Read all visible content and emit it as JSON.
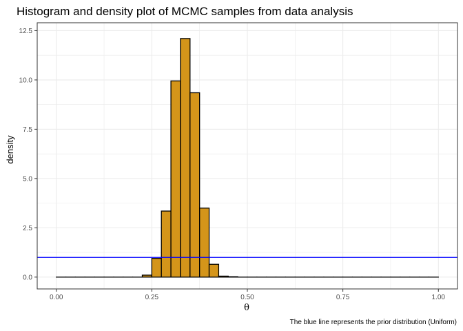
{
  "chart_data": {
    "type": "bar",
    "title": "Histogram and density plot of MCMC samples from data analysis",
    "xlabel": "θ",
    "ylabel": "density",
    "caption": "The blue line represents the prior distribution (Uniform)",
    "xlim": [
      -0.05,
      1.05
    ],
    "ylim": [
      -0.6,
      12.9
    ],
    "x_ticks": [
      0.0,
      0.25,
      0.5,
      0.75,
      1.0
    ],
    "x_tick_labels": [
      "0.00",
      "0.25",
      "0.50",
      "0.75",
      "1.00"
    ],
    "y_ticks": [
      0.0,
      2.5,
      5.0,
      7.5,
      10.0,
      12.5
    ],
    "y_tick_labels": [
      "0.0",
      "2.5",
      "5.0",
      "7.5",
      "10.0",
      "12.5"
    ],
    "grid": true,
    "bin_width": 0.025,
    "bins": [
      {
        "x": 0.0,
        "density": 0.0
      },
      {
        "x": 0.025,
        "density": 0.0
      },
      {
        "x": 0.05,
        "density": 0.0
      },
      {
        "x": 0.075,
        "density": 0.0
      },
      {
        "x": 0.1,
        "density": 0.0
      },
      {
        "x": 0.125,
        "density": 0.0
      },
      {
        "x": 0.15,
        "density": 0.0
      },
      {
        "x": 0.175,
        "density": 0.0
      },
      {
        "x": 0.2,
        "density": 0.0
      },
      {
        "x": 0.225,
        "density": 0.1
      },
      {
        "x": 0.25,
        "density": 0.95
      },
      {
        "x": 0.275,
        "density": 3.35
      },
      {
        "x": 0.3,
        "density": 9.95
      },
      {
        "x": 0.325,
        "density": 12.1
      },
      {
        "x": 0.35,
        "density": 9.35
      },
      {
        "x": 0.375,
        "density": 3.5
      },
      {
        "x": 0.4,
        "density": 0.65
      },
      {
        "x": 0.425,
        "density": 0.05
      },
      {
        "x": 0.45,
        "density": 0.02
      },
      {
        "x": 0.475,
        "density": 0.0
      },
      {
        "x": 0.5,
        "density": 0.0
      },
      {
        "x": 0.525,
        "density": 0.0
      },
      {
        "x": 0.55,
        "density": 0.0
      },
      {
        "x": 0.575,
        "density": 0.0
      },
      {
        "x": 0.6,
        "density": 0.0
      },
      {
        "x": 0.625,
        "density": 0.0
      },
      {
        "x": 0.65,
        "density": 0.0
      },
      {
        "x": 0.675,
        "density": 0.0
      },
      {
        "x": 0.7,
        "density": 0.0
      },
      {
        "x": 0.725,
        "density": 0.0
      },
      {
        "x": 0.75,
        "density": 0.0
      },
      {
        "x": 0.775,
        "density": 0.0
      },
      {
        "x": 0.8,
        "density": 0.0
      },
      {
        "x": 0.825,
        "density": 0.0
      },
      {
        "x": 0.85,
        "density": 0.0
      },
      {
        "x": 0.875,
        "density": 0.0
      },
      {
        "x": 0.9,
        "density": 0.0
      },
      {
        "x": 0.925,
        "density": 0.0
      },
      {
        "x": 0.95,
        "density": 0.0
      },
      {
        "x": 0.975,
        "density": 0.0
      }
    ],
    "prior_line": {
      "distribution": "Uniform",
      "value": 1.0,
      "color": "#0000ff"
    },
    "bar_fill": "#d4951a",
    "bar_stroke": "#000000",
    "grid_color": "#ebebeb"
  }
}
